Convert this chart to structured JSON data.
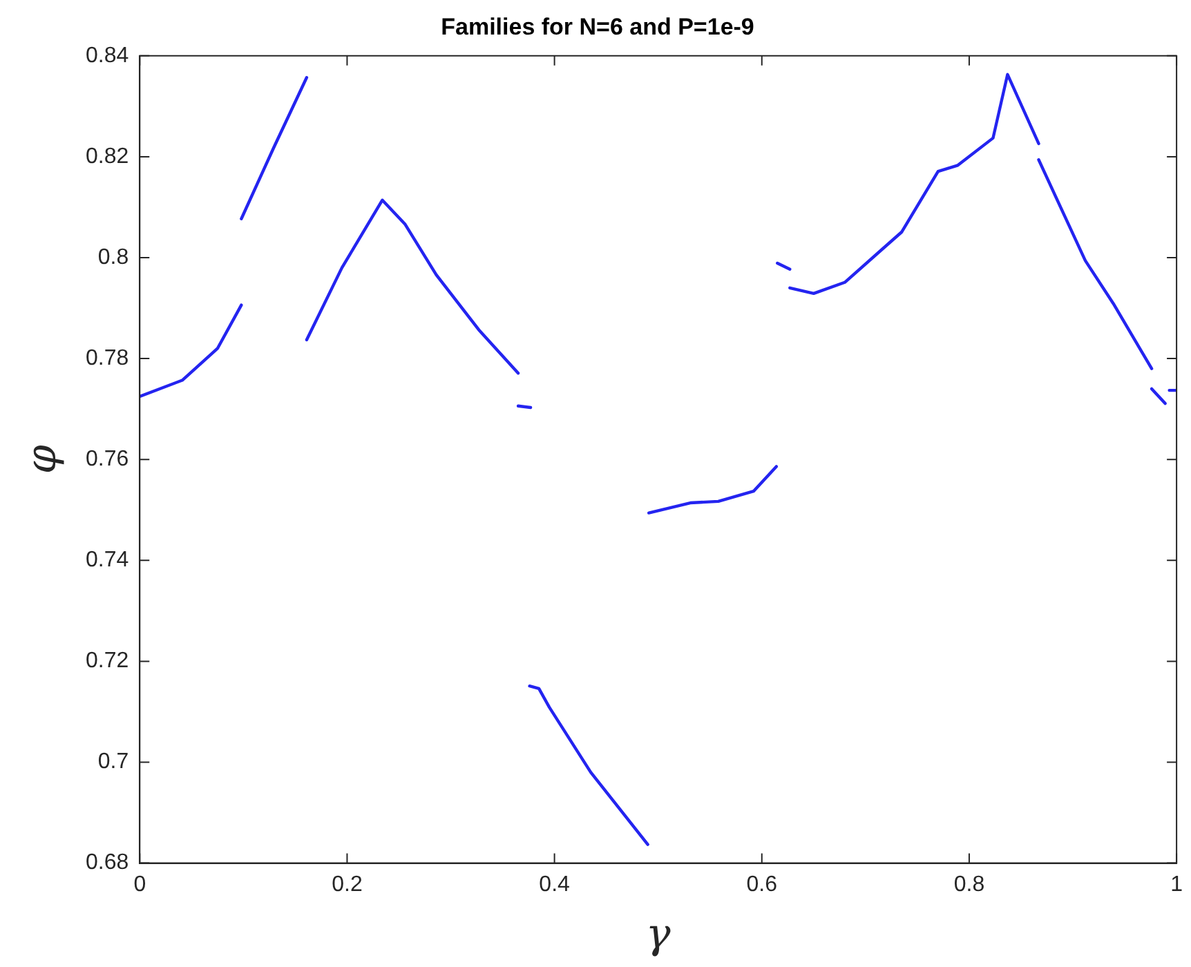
{
  "chart_data": {
    "type": "line",
    "title": "Families for N=6 and P=1e-9",
    "xlabel": "γ",
    "ylabel": "φ",
    "series": [
      {
        "color": "#2424f0",
        "x": [
          0,
          0.041,
          0.075,
          0.098,
          null,
          0.098,
          0.129,
          0.161,
          null,
          0.161,
          0.195,
          0.234,
          0.256,
          0.286,
          0.327,
          0.365,
          null,
          0.365,
          0.377,
          null,
          0.376,
          0.385,
          0.395,
          0.435,
          0.49,
          null,
          0.491,
          0.531,
          0.558,
          0.592,
          0.614,
          null,
          0.615,
          0.627,
          null,
          0.627,
          0.65,
          0.68,
          0.735,
          0.77,
          0.789,
          0.823,
          0.837,
          0.867,
          null,
          0.867,
          0.912,
          0.939,
          0.976,
          null,
          0.976,
          0.989,
          null,
          0.993,
          1.0
        ],
        "values": [
          0.7725,
          0.7757,
          0.782,
          0.7906,
          null,
          0.8077,
          0.8217,
          0.8357,
          null,
          0.7837,
          0.798,
          0.8114,
          0.8066,
          0.7966,
          0.7857,
          0.7771,
          null,
          0.7706,
          0.7703,
          null,
          0.7151,
          0.7146,
          0.7109,
          0.698,
          0.6837,
          null,
          0.7494,
          0.7514,
          0.7517,
          0.7537,
          0.7586,
          null,
          0.7989,
          0.7977,
          null,
          0.794,
          0.7929,
          0.7951,
          0.8051,
          0.8171,
          0.8183,
          0.8237,
          0.8363,
          0.8226,
          null,
          0.8194,
          0.7994,
          0.7909,
          0.778,
          null,
          0.774,
          0.7711,
          null,
          0.7737,
          0.7737
        ]
      }
    ],
    "xlim": [
      0,
      1
    ],
    "xticks": [
      0,
      0.2,
      0.4,
      0.6,
      0.8,
      1
    ],
    "ylim": [
      0.68,
      0.84
    ],
    "yticks": [
      0.68,
      0.7,
      0.72,
      0.74,
      0.76,
      0.78,
      0.8,
      0.82,
      0.84
    ],
    "grid": false,
    "legend": false,
    "marker": "none",
    "line_style": "solid"
  }
}
